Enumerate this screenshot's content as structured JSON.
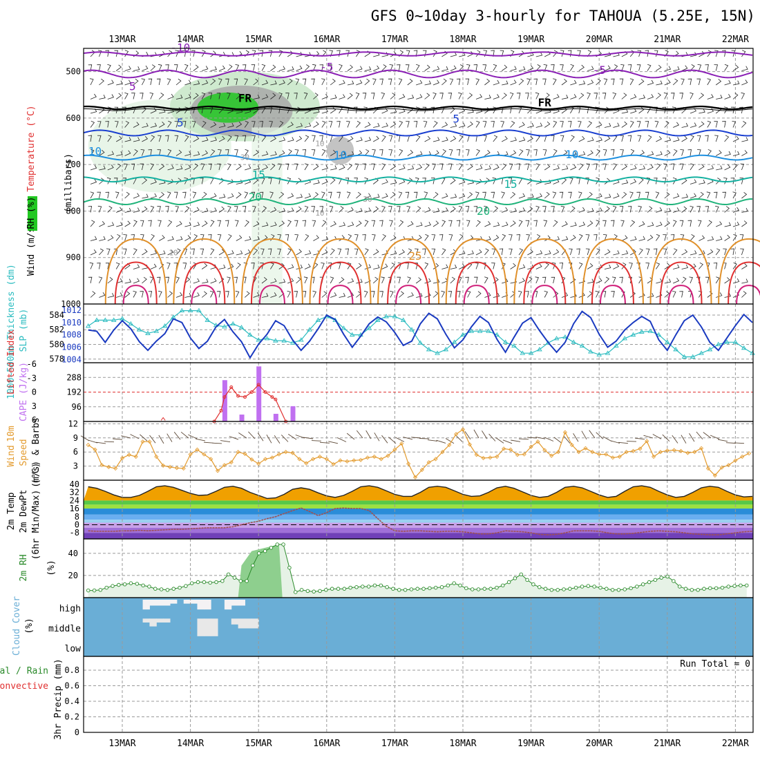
{
  "title": "GFS 0~10day 3-hourly for TAHOUA (5.25E, 15N)",
  "dates": [
    "13MAR",
    "14MAR",
    "15MAR",
    "16MAR",
    "17MAR",
    "18MAR",
    "19MAR",
    "20MAR",
    "21MAR",
    "22MAR"
  ],
  "colors": {
    "violet": "#8a1fb5",
    "blue": "#1a3fd0",
    "sky": "#1c8fe0",
    "teal": "#13b0a0",
    "green": "#1fb37a",
    "orange": "#e0902a",
    "red": "#e03030",
    "magenta": "#d0207a",
    "slp": "#1a3ac0",
    "thick": "#2bbcc0",
    "cape": "#c070f0",
    "li": "#e03030",
    "wind": "#e39a2c",
    "rh2m": "#2a8a2a",
    "cloud": "#6aaed6"
  },
  "panels": {
    "upper": {
      "ylabel_parts": [
        "Wind (m/s)",
        "Temperature (°C)",
        "RH (%)",
        "(millibars)"
      ],
      "yticks": [
        "500",
        "600",
        "700",
        "800",
        "900",
        "1000"
      ],
      "contour_labels": [
        {
          "text": "-10",
          "color": "violet"
        },
        {
          "text": "-5",
          "color": "violet"
        },
        {
          "text": "5",
          "color": "violet"
        },
        {
          "text": "-5",
          "color": "violet"
        },
        {
          "text": "FR",
          "color": "black"
        },
        {
          "text": "FR",
          "color": "black"
        },
        {
          "text": "5",
          "color": "blue"
        },
        {
          "text": "5",
          "color": "blue"
        },
        {
          "text": "10",
          "color": "sky"
        },
        {
          "text": "10",
          "color": "sky"
        },
        {
          "text": "10",
          "color": "sky"
        },
        {
          "text": "15",
          "color": "teal"
        },
        {
          "text": "15",
          "color": "teal"
        },
        {
          "text": "20",
          "color": "green"
        },
        {
          "text": "20",
          "color": "green"
        },
        {
          "text": "25",
          "color": "orange"
        },
        {
          "text": "10",
          "color": "gray"
        },
        {
          "text": "10",
          "color": "gray"
        },
        {
          "text": "30",
          "color": "gray"
        },
        {
          "text": "30",
          "color": "gray"
        },
        {
          "text": "10",
          "color": "gray"
        }
      ]
    },
    "slp": {
      "ylabel_left": "1000~500mb Thickness (dm)",
      "ylabel_right": "SLP (mb)",
      "yticks_left": [
        "584",
        "582",
        "580",
        "578"
      ],
      "yticks_right": [
        "1012",
        "1010",
        "1008",
        "1006",
        "1004"
      ],
      "thick_range": [
        577.5,
        585.5
      ],
      "slp_range": [
        1003.5,
        1013
      ],
      "thickness": [
        582.5,
        583.3,
        583.3,
        583.3,
        583.5,
        582.8,
        582.0,
        581.5,
        581.8,
        582.5,
        583.7,
        584.6,
        584.6,
        584.6,
        583.3,
        582.6,
        582.4,
        582.8,
        582.3,
        581.3,
        580.6,
        580.8,
        580.5,
        580.5,
        580.2,
        580.6,
        582.0,
        583.3,
        583.8,
        583.3,
        582.2,
        581.3,
        581.3,
        582.2,
        583.3,
        583.8,
        583.8,
        583.3,
        582.0,
        580.2,
        579.3,
        578.8,
        579.3,
        580.3,
        581.3,
        581.8,
        581.8,
        581.8,
        581.3,
        580.3,
        579.8,
        578.8,
        578.8,
        579.3,
        580.2,
        580.8,
        581.0,
        580.3,
        579.8,
        579.0,
        578.6,
        578.8,
        579.8,
        580.8,
        581.3,
        581.7,
        581.8,
        581.3,
        580.3,
        579.3,
        578.3,
        578.3,
        578.8,
        579.3,
        580.0,
        580.3,
        580.3,
        579.5,
        578.8,
        578.4,
        578.8,
        579.5,
        580.3,
        581.0,
        581.7,
        582.3,
        582.2,
        581.3,
        580.3,
        579.3,
        578.6,
        578.6,
        579.0,
        579.3,
        579.3,
        579.0,
        578.5
      ],
      "slp": [
        1008.8,
        1008.6,
        1006.8,
        1008.8,
        1010.3,
        1009.0,
        1006.9,
        1005.5,
        1007.0,
        1008.2,
        1010.6,
        1010.0,
        1007.5,
        1005.8,
        1007.0,
        1009.3,
        1010.5,
        1008.5,
        1006.9,
        1004.3,
        1006.5,
        1008.1,
        1010.3,
        1009.5,
        1007.2,
        1005.5,
        1007.0,
        1009.0,
        1011.2,
        1010.5,
        1008.1,
        1006.0,
        1007.8,
        1009.8,
        1010.9,
        1010.1,
        1008.4,
        1006.3,
        1007.0,
        1009.8,
        1011.5,
        1010.6,
        1008.1,
        1005.9,
        1007.2,
        1009.3,
        1011.0,
        1010.0,
        1007.3,
        1005.2,
        1007.6,
        1009.9,
        1010.8,
        1008.7,
        1006.8,
        1005.2,
        1006.8,
        1009.8,
        1011.8,
        1010.8,
        1008.1,
        1006.0,
        1007.0,
        1008.8,
        1010.0,
        1011.0,
        1010.2,
        1007.2,
        1005.5,
        1008.0,
        1010.3,
        1011.2,
        1009.3,
        1006.8,
        1005.5,
        1007.5,
        1009.5,
        1011.3,
        1010.0,
        1007.0,
        1006.2,
        1008.2,
        1010.0,
        1011.5,
        1010.2,
        1007.8,
        1006.7,
        1008.5,
        1010.3,
        1011.7,
        1010.3,
        1007.5,
        1005.3,
        1007.0,
        1008.0,
        1007.4,
        1008.5
      ]
    },
    "cape": {
      "ylabel_left": "Lifted Index",
      "ylabel_right": "CAPE (J/kg)",
      "yticks_li": [
        "-6",
        "-3",
        "0",
        "3",
        "6"
      ],
      "yticks_cape": [
        "288",
        "192",
        "96"
      ],
      "cape_range": [
        0,
        384
      ],
      "cape_x": [
        2.0,
        2.25,
        2.5,
        2.75,
        3.0
      ],
      "cape_vals": [
        270,
        45,
        360,
        50,
        100
      ],
      "li_x": [
        1.85,
        1.95,
        2.0,
        2.1,
        2.2,
        2.3,
        2.4,
        2.5,
        2.6,
        2.7,
        2.75,
        2.9
      ],
      "li_vals": [
        6.0,
        3.8,
        1.0,
        -1.0,
        0.8,
        1.0,
        0.0,
        -1.5,
        0.0,
        1.0,
        1.5,
        6.0
      ],
      "li_x2": [
        0.6
      ],
      "li_vals2": [
        5.5
      ]
    },
    "wind10": {
      "ylabel": "10m Wind Speed & Barbs (m/s)",
      "yticks": [
        "12",
        "9",
        "6",
        "3"
      ],
      "range": [
        0,
        12.5
      ],
      "speed": [
        7.5,
        6.5,
        3.2,
        2.8,
        2.5,
        4.7,
        5.4,
        5.0,
        8.2,
        8.2,
        5.0,
        3.1,
        2.8,
        2.6,
        2.5,
        5.5,
        6.5,
        5.5,
        4.5,
        2.0,
        3.2,
        3.8,
        6.0,
        5.6,
        4.4,
        3.5,
        4.5,
        4.8,
        5.5,
        6.0,
        5.8,
        4.5,
        3.6,
        4.5,
        5.0,
        4.5,
        3.4,
        4.2,
        4.0,
        4.2,
        4.3,
        4.8,
        5.0,
        4.5,
        5.2,
        6.5,
        7.8,
        3.5,
        0.6,
        2.2,
        3.8,
        4.5,
        6.0,
        7.5,
        9.8,
        10.8,
        7.6,
        5.4,
        4.7,
        4.8,
        5.0,
        6.7,
        6.5,
        5.4,
        5.5,
        7.1,
        8.2,
        6.4,
        5.2,
        6.0,
        10.2,
        7.5,
        6.0,
        6.8,
        6.0,
        5.5,
        5.5,
        4.8,
        5.0,
        6.0,
        6.2,
        6.7,
        8.3,
        5.0,
        6.0,
        6.3,
        6.4,
        6.2,
        5.8,
        6.0,
        6.8,
        2.5,
        1.0,
        2.7,
        3.2,
        4.2,
        5.0,
        5.7
      ],
      "x0": 0.0
    },
    "t2m": {
      "ylabel": "2m Temp 2m DewPt (6hr Min/Max) (°C)",
      "yticks": [
        "40",
        "32",
        "24",
        "16",
        "8",
        "0",
        "-8"
      ],
      "range": [
        -14,
        44
      ],
      "temp": [
        37.5,
        36.0,
        33.0,
        29.5,
        27.0,
        27.0,
        29.0,
        33.0,
        37.5,
        38.5,
        37.0,
        34.0,
        31.0,
        29.0,
        29.5,
        33.0,
        37.0,
        38.0,
        36.0,
        32.0,
        29.0,
        26.0,
        26.5,
        30.0,
        35.0,
        36.5,
        35.0,
        31.5,
        28.5,
        27.0,
        29.0,
        33.0,
        37.5,
        38.5,
        37.0,
        33.5,
        30.0,
        28.0,
        28.0,
        32.0,
        37.0,
        38.0,
        37.0,
        33.5,
        30.0,
        28.0,
        28.5,
        32.0,
        36.5,
        38.0,
        36.0,
        32.5,
        29.0,
        27.0,
        28.0,
        32.0,
        37.0,
        38.0,
        36.5,
        33.0,
        29.5,
        27.0,
        28.0,
        33.0,
        37.5,
        38.5,
        37.0,
        33.0,
        29.5,
        27.0,
        28.0,
        32.0,
        36.5,
        38.0,
        37.0,
        33.0,
        29.5,
        27.5,
        28.0,
        32.0,
        37.0,
        38.0,
        36.0,
        32.5,
        29.5,
        28.0,
        28.0,
        32.0,
        36.5,
        38.0,
        37.0,
        33.0,
        30.0,
        28.0,
        27.0,
        26.5,
        26.0
      ],
      "dew": [
        -6.0,
        -6.5,
        -6.5,
        -6.5,
        -6.0,
        -6.0,
        -5.5,
        -6.0,
        -5.5,
        -5.0,
        -4.5,
        -4.5,
        -4.0,
        -3.5,
        -3.0,
        -3.0,
        -3.0,
        -2.0,
        0.0,
        2.0,
        3.5,
        6.0,
        8.0,
        11.0,
        14.0,
        16.5,
        13.0,
        9.0,
        12.0,
        16.0,
        16.5,
        16.0,
        16.0,
        14.0,
        6.0,
        -1.5,
        -6.0,
        -6.5,
        -6.0,
        -6.0,
        -6.5,
        -7.0,
        -6.5,
        -6.5,
        -7.0,
        -8.0,
        -9.0,
        -9.0,
        -8.0,
        -6.0,
        -6.5,
        -7.0,
        -8.0,
        -9.5,
        -10.0,
        -9.5,
        -8.0,
        -6.0,
        -6.0,
        -6.0,
        -6.5,
        -8.0,
        -9.0,
        -9.0,
        -8.5,
        -7.5,
        -6.5,
        -6.0,
        -6.5,
        -7.0,
        -8.0,
        -9.0,
        -9.5,
        -10.0,
        -10.0,
        -9.0,
        -8.0,
        -7.0,
        -6.5,
        -6.5,
        -7.0,
        -7.5,
        -8.0,
        -8.5,
        -8.5,
        -8.5,
        -8.0,
        -7.5,
        -7.0,
        -7.5,
        -8.5,
        -9.0,
        -9.0,
        -8.5,
        -8.5,
        -8.5,
        -8.5,
        -8.5,
        -8.5
      ]
    },
    "rh2m": {
      "ylabel": "2m RH (%)",
      "yticks": [
        "40",
        "20"
      ],
      "range": [
        0,
        53
      ],
      "rh": [
        6.5,
        6.5,
        7,
        9,
        10.5,
        11.5,
        12,
        13,
        12.5,
        11,
        10,
        8,
        7.5,
        7,
        8,
        9,
        10.5,
        13,
        14,
        14,
        13.5,
        14,
        15,
        21,
        18,
        15,
        15,
        29,
        40,
        42,
        45,
        48,
        48,
        27,
        5,
        7,
        6,
        5.5,
        6,
        7,
        8,
        8,
        8,
        9,
        9.5,
        10,
        10,
        11,
        11,
        9.5,
        8,
        7,
        7,
        7.5,
        8,
        8,
        8.5,
        9,
        9.5,
        11,
        13,
        11,
        8.5,
        7.5,
        7.5,
        8,
        8,
        9,
        11,
        14,
        17.5,
        21,
        16,
        12,
        9.5,
        8,
        7,
        7,
        7.5,
        8,
        9,
        10,
        10.5,
        10,
        9,
        8,
        7,
        7,
        7.5,
        8.5,
        10,
        12,
        14,
        16,
        18,
        19,
        15,
        10,
        8,
        7,
        7,
        8,
        8.5,
        8.5,
        9,
        10,
        10.5,
        11,
        11
      ],
      "x0": -0.25
    },
    "cloud": {
      "ylabel": "Cloud Cover (%)",
      "levels": [
        "high",
        "middle",
        "low"
      ],
      "high": [
        0,
        0,
        0,
        0,
        0,
        0,
        0,
        0,
        0.5,
        0.3,
        0.3,
        0.3,
        0.2,
        0,
        0.2,
        0.2,
        0.5,
        0.5,
        0,
        0,
        0.5,
        0.3,
        0.3,
        0,
        0,
        0,
        0,
        0,
        0,
        0,
        0,
        0,
        0,
        0,
        0,
        0,
        0,
        0,
        0,
        0,
        0,
        0,
        0,
        0,
        0,
        0,
        0,
        0,
        0,
        0,
        0,
        0,
        0,
        0,
        0,
        0,
        0,
        0,
        0,
        0,
        0,
        0,
        0,
        0,
        0,
        0,
        0,
        0,
        0,
        0,
        0,
        0,
        0,
        0,
        0,
        0,
        0,
        0,
        0,
        0,
        0,
        0,
        0,
        0,
        0,
        0,
        0,
        0,
        0,
        0,
        0,
        0,
        0,
        0,
        0,
        0,
        0,
        0,
        0,
        0,
        0.1,
        0,
        0,
        0,
        0,
        0,
        0,
        0,
        0,
        0,
        0,
        0,
        0,
        0,
        0.8,
        0.7,
        0.5,
        0.3,
        0.3,
        0,
        0.3,
        0.3,
        0.3,
        0,
        0,
        0.8,
        0.8,
        0.8,
        0
      ],
      "middle": [
        0,
        0,
        0,
        0,
        0,
        0,
        0,
        0,
        0.2,
        0.4,
        0.2,
        0.2,
        0,
        0,
        0,
        0,
        0.9,
        0.9,
        0.9,
        0,
        0,
        0.3,
        0.5,
        0.5,
        0.5,
        0,
        0,
        0,
        0,
        0,
        0,
        0,
        0
      ],
      "low": [],
      "high_x0": 0.0,
      "middle_x0": 0.0
    },
    "precip": {
      "ylabel_parts": [
        "Total / Rain",
        "Convective",
        "3hr Precip (mm)"
      ],
      "yticks": [
        "0.8",
        "0.6",
        "0.4",
        "0.2",
        "0"
      ],
      "run_total": "Run Total = 0"
    }
  }
}
